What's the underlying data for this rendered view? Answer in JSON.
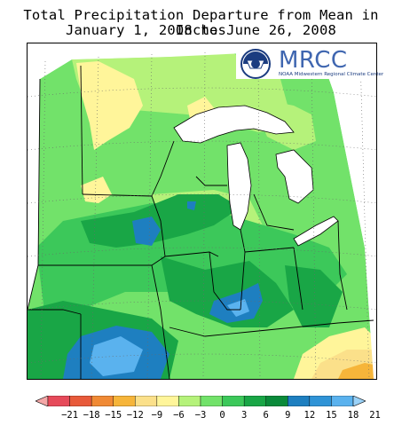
{
  "title": {
    "line1": "Total Precipitation Departure from Mean in Inches",
    "line2": "January 1, 2008 to June 26, 2008"
  },
  "logo": {
    "acronym": "MRCC",
    "subtitle": "NOAA Midwestern Regional Climate Center"
  },
  "legend": {
    "ticks": [
      "−21",
      "−18",
      "−15",
      "−12",
      "−9",
      "−6",
      "−3",
      "0",
      "3",
      "6",
      "9",
      "12",
      "15",
      "18",
      "21"
    ],
    "colors": [
      "#f4a7a7",
      "#e64a5a",
      "#e85a3a",
      "#f08a35",
      "#f6b53a",
      "#fbe08a",
      "#fff59a",
      "#b5f27a",
      "#72e26a",
      "#3cc85a",
      "#19a646",
      "#0a8a3a",
      "#1e7fc0",
      "#2f93d6",
      "#5ab2ee",
      "#9ad2f8"
    ]
  }
}
